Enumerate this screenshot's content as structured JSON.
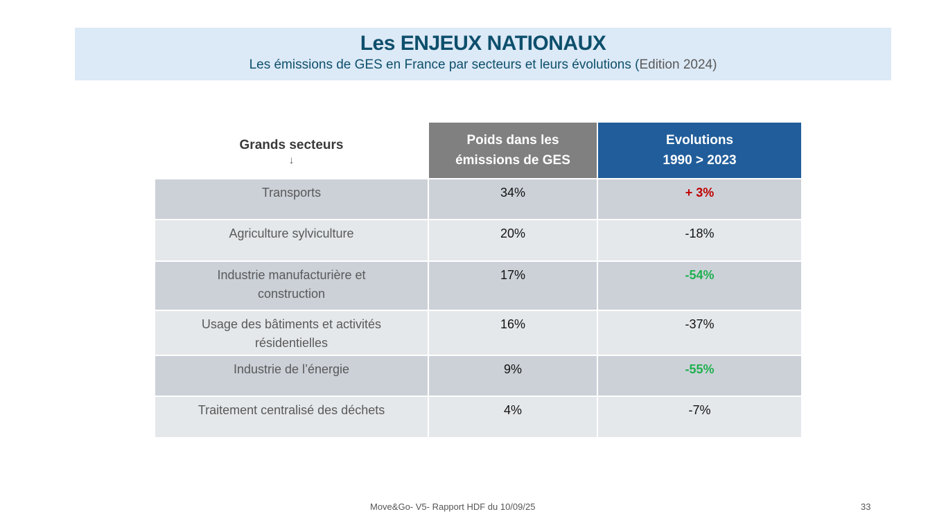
{
  "header": {
    "title": "Les ENJEUX NATIONAUX",
    "subtitle": "Les émissions de GES en France par secteurs et leurs évolutions (",
    "edition": "Edition 2024)",
    "background_color": "#dce9f6",
    "title_color": "#0d4f6c"
  },
  "table": {
    "headers": {
      "sector": "Grands secteurs",
      "sector_arrow": "↓",
      "weight_line1": "Poids dans les",
      "weight_line2": "émissions de GES",
      "evol_line1": "Evolutions",
      "evol_line2": "1990 > 2023"
    },
    "rows": [
      {
        "sector": "Transports",
        "weight": "34%",
        "evolution": "+ 3%",
        "tone": "red"
      },
      {
        "sector": "Agriculture sylviculture",
        "weight": "20%",
        "evolution": "-18%",
        "tone": "neutral"
      },
      {
        "sector": "Industrie manufacturière et construction",
        "weight": "17%",
        "evolution": "-54%",
        "tone": "green"
      },
      {
        "sector": "Usage des bâtiments et activités résidentielles",
        "weight": "16%",
        "evolution": "-37%",
        "tone": "neutral"
      },
      {
        "sector": "Industrie de l’énergie",
        "weight": "9%",
        "evolution": "-55%",
        "tone": "green"
      },
      {
        "sector": "Traitement centralisé des déchets",
        "weight": "4%",
        "evolution": "-7%",
        "tone": "neutral"
      }
    ],
    "colors": {
      "red": "#c00000",
      "green": "#1fb04f",
      "header_weight": "#808080",
      "header_evol": "#215d9a"
    }
  },
  "footer": {
    "text": "Move&Go- V5- Rapport HDF du 10/09/25",
    "page_number": "33"
  }
}
